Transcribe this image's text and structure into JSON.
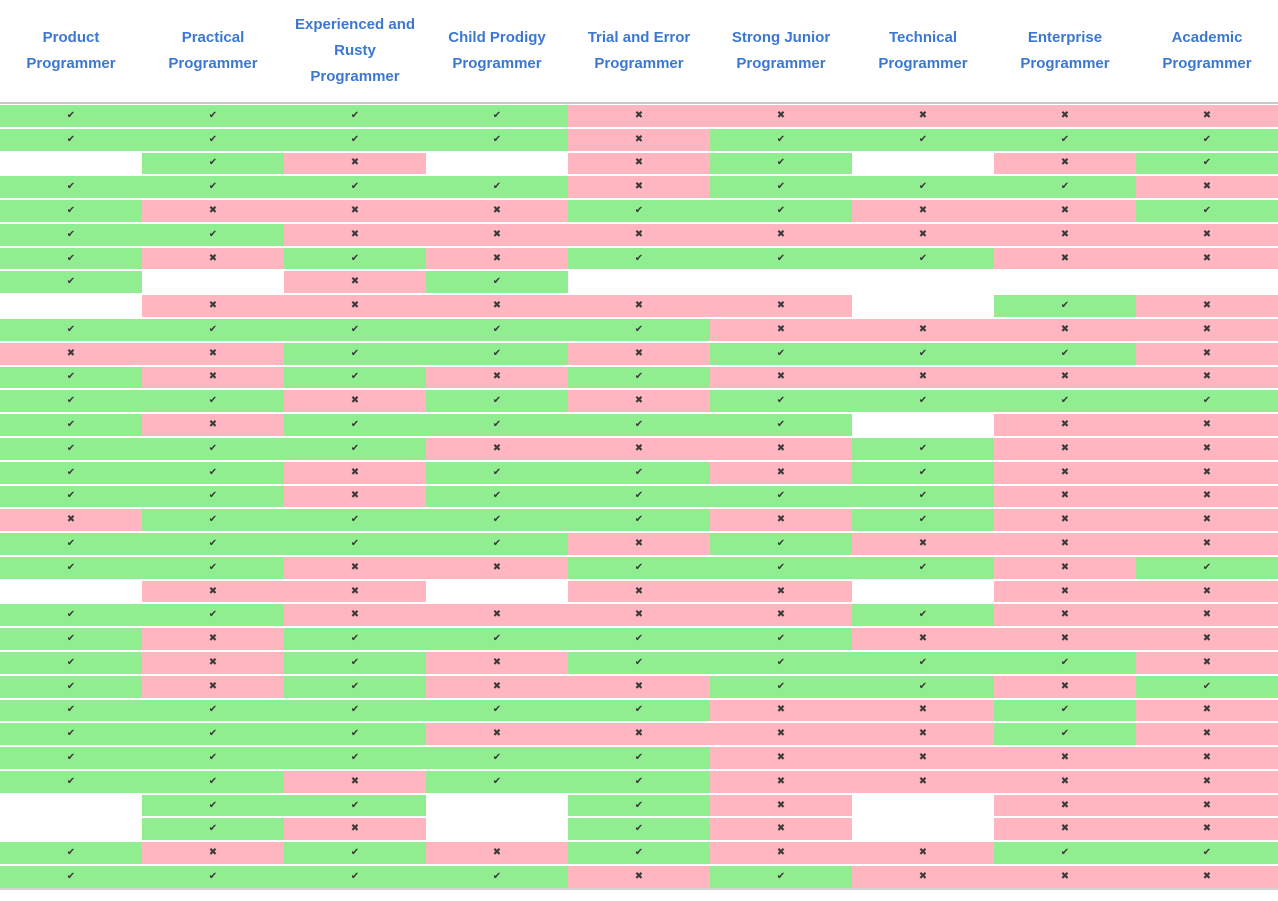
{
  "table": {
    "columns": [
      "Product Programmer",
      "Practical Programmer",
      "Experienced and Rusty Programmer",
      "Child Prodigy Programmer",
      "Trial and Error Programmer",
      "Strong Junior Programmer",
      "Technical Programmer",
      "Enterprise Programmer",
      "Academic Programmer"
    ],
    "icons": {
      "check_glyph": "✔",
      "cross_glyph": "✖"
    },
    "cell_states": {
      "y": "check",
      "n": "cross",
      "": "empty"
    },
    "rows": [
      [
        "y",
        "y",
        "y",
        "y",
        "n",
        "n",
        "n",
        "n",
        "n"
      ],
      [
        "y",
        "y",
        "y",
        "y",
        "n",
        "y",
        "y",
        "y",
        "y"
      ],
      [
        "",
        "y",
        "n",
        "",
        "n",
        "y",
        "",
        "n",
        "y"
      ],
      [
        "y",
        "y",
        "y",
        "y",
        "n",
        "y",
        "y",
        "y",
        "n"
      ],
      [
        "y",
        "n",
        "n",
        "n",
        "y",
        "y",
        "n",
        "n",
        "y"
      ],
      [
        "y",
        "y",
        "n",
        "n",
        "n",
        "n",
        "n",
        "n",
        "n"
      ],
      [
        "y",
        "n",
        "y",
        "n",
        "y",
        "y",
        "y",
        "n",
        "n"
      ],
      [
        "y",
        "",
        "n",
        "y",
        "",
        "",
        "",
        "",
        ""
      ],
      [
        "",
        "n",
        "n",
        "n",
        "n",
        "n",
        "",
        "y",
        "n"
      ],
      [
        "y",
        "y",
        "y",
        "y",
        "y",
        "n",
        "n",
        "n",
        "n"
      ],
      [
        "n",
        "n",
        "y",
        "y",
        "n",
        "y",
        "y",
        "y",
        "n"
      ],
      [
        "y",
        "n",
        "y",
        "n",
        "y",
        "n",
        "n",
        "n",
        "n"
      ],
      [
        "y",
        "y",
        "n",
        "y",
        "n",
        "y",
        "y",
        "y",
        "y"
      ],
      [
        "y",
        "n",
        "y",
        "y",
        "y",
        "y",
        "",
        "n",
        "n"
      ],
      [
        "y",
        "y",
        "y",
        "n",
        "n",
        "n",
        "y",
        "n",
        "n"
      ],
      [
        "y",
        "y",
        "n",
        "y",
        "y",
        "n",
        "y",
        "n",
        "n"
      ],
      [
        "y",
        "y",
        "n",
        "y",
        "y",
        "y",
        "y",
        "n",
        "n"
      ],
      [
        "n",
        "y",
        "y",
        "y",
        "y",
        "n",
        "y",
        "n",
        "n"
      ],
      [
        "y",
        "y",
        "y",
        "y",
        "n",
        "y",
        "n",
        "n",
        "n"
      ],
      [
        "y",
        "y",
        "n",
        "n",
        "y",
        "y",
        "y",
        "n",
        "y"
      ],
      [
        "",
        "n",
        "n",
        "",
        "n",
        "n",
        "",
        "n",
        "n"
      ],
      [
        "y",
        "y",
        "n",
        "n",
        "n",
        "n",
        "y",
        "n",
        "n"
      ],
      [
        "y",
        "n",
        "y",
        "y",
        "y",
        "y",
        "n",
        "n",
        "n"
      ],
      [
        "y",
        "n",
        "y",
        "n",
        "y",
        "y",
        "y",
        "y",
        "n"
      ],
      [
        "y",
        "n",
        "y",
        "n",
        "n",
        "y",
        "y",
        "n",
        "y"
      ],
      [
        "y",
        "y",
        "y",
        "y",
        "y",
        "n",
        "n",
        "y",
        "n"
      ],
      [
        "y",
        "y",
        "y",
        "n",
        "n",
        "n",
        "n",
        "y",
        "n"
      ],
      [
        "y",
        "y",
        "y",
        "y",
        "y",
        "n",
        "n",
        "n",
        "n"
      ],
      [
        "y",
        "y",
        "n",
        "y",
        "y",
        "n",
        "n",
        "n",
        "n"
      ],
      [
        "",
        "y",
        "y",
        "",
        "y",
        "n",
        "",
        "n",
        "n"
      ],
      [
        "",
        "y",
        "n",
        "",
        "y",
        "n",
        "",
        "n",
        "n"
      ],
      [
        "y",
        "n",
        "y",
        "n",
        "y",
        "n",
        "n",
        "y",
        "y"
      ],
      [
        "y",
        "y",
        "y",
        "y",
        "n",
        "y",
        "n",
        "n",
        "n"
      ]
    ]
  },
  "colors": {
    "check_cell_green": "#90ee90",
    "cross_cell_pink": "#ffb6c1",
    "header_text_blue": "#3c78d2",
    "mark_dark": "#3a3a3a",
    "divider_gray": "#c9c9c9"
  }
}
